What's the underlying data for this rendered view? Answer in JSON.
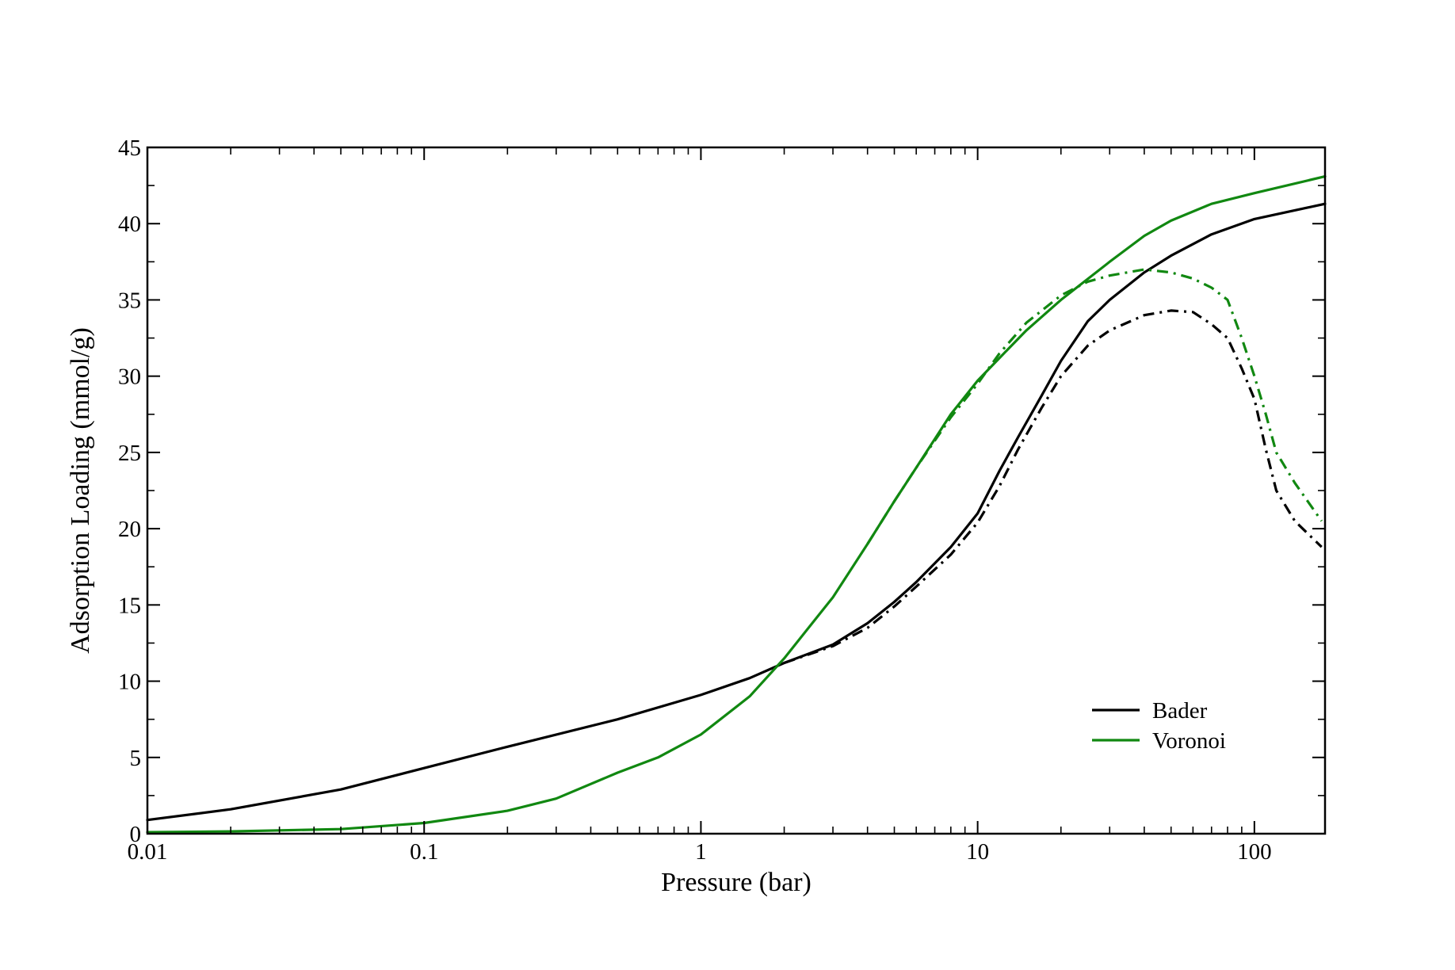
{
  "chart_data": {
    "type": "line",
    "xlabel": "Pressure (bar)",
    "ylabel": "Adsorption Loading (mmol/g)",
    "xscale": "log",
    "xlim": [
      0.01,
      180
    ],
    "ylim": [
      0,
      45
    ],
    "x_ticks": [
      {
        "value": 0.01,
        "label": "0.01"
      },
      {
        "value": 0.1,
        "label": "0.1"
      },
      {
        "value": 1,
        "label": "1"
      },
      {
        "value": 10,
        "label": "10"
      },
      {
        "value": 100,
        "label": "100"
      }
    ],
    "y_ticks": [
      {
        "value": 0,
        "label": "0"
      },
      {
        "value": 5,
        "label": "5"
      },
      {
        "value": 10,
        "label": "10"
      },
      {
        "value": 15,
        "label": "15"
      },
      {
        "value": 20,
        "label": "20"
      },
      {
        "value": 25,
        "label": "25"
      },
      {
        "value": 30,
        "label": "30"
      },
      {
        "value": 35,
        "label": "35"
      },
      {
        "value": 40,
        "label": "40"
      },
      {
        "value": 45,
        "label": "45"
      }
    ],
    "grid": false,
    "legend_position": "bottom-right",
    "legend": [
      {
        "label": "Bader",
        "color": "#000000"
      },
      {
        "label": "Voronoi",
        "color": "#118811"
      }
    ],
    "series": [
      {
        "name": "Bader",
        "color": "#000000",
        "dash": "solid",
        "points": [
          [
            0.01,
            0.9
          ],
          [
            0.02,
            1.6
          ],
          [
            0.05,
            2.9
          ],
          [
            0.1,
            4.3
          ],
          [
            0.2,
            5.7
          ],
          [
            0.5,
            7.5
          ],
          [
            1,
            9.1
          ],
          [
            1.5,
            10.2
          ],
          [
            2,
            11.2
          ],
          [
            3,
            12.4
          ],
          [
            4,
            13.8
          ],
          [
            5,
            15.2
          ],
          [
            6,
            16.5
          ],
          [
            8,
            18.8
          ],
          [
            10,
            21
          ],
          [
            12,
            23.8
          ],
          [
            14,
            26
          ],
          [
            17,
            28.7
          ],
          [
            20,
            31
          ],
          [
            25,
            33.6
          ],
          [
            30,
            35
          ],
          [
            40,
            36.8
          ],
          [
            50,
            37.9
          ],
          [
            70,
            39.3
          ],
          [
            100,
            40.3
          ],
          [
            180,
            41.3
          ]
        ]
      },
      {
        "name": "",
        "color": "#000000",
        "dash": "dash-dot",
        "points": [
          [
            2,
            11.2
          ],
          [
            3,
            12.3
          ],
          [
            4,
            13.5
          ],
          [
            5,
            14.9
          ],
          [
            6,
            16.2
          ],
          [
            8,
            18.3
          ],
          [
            10,
            20.4
          ],
          [
            12,
            22.8
          ],
          [
            14,
            25.2
          ],
          [
            17,
            27.9
          ],
          [
            20,
            30
          ],
          [
            25,
            32
          ],
          [
            30,
            33
          ],
          [
            40,
            34
          ],
          [
            50,
            34.3
          ],
          [
            60,
            34.2
          ],
          [
            70,
            33.4
          ],
          [
            80,
            32.5
          ],
          [
            90,
            30.5
          ],
          [
            100,
            28.5
          ],
          [
            110,
            25.2
          ],
          [
            120,
            22.5
          ],
          [
            140,
            20.5
          ],
          [
            175,
            18.8
          ]
        ]
      },
      {
        "name": "Voronoi",
        "color": "#118811",
        "dash": "solid",
        "points": [
          [
            0.01,
            0.1
          ],
          [
            0.02,
            0.15
          ],
          [
            0.05,
            0.3
          ],
          [
            0.1,
            0.7
          ],
          [
            0.2,
            1.5
          ],
          [
            0.3,
            2.3
          ],
          [
            0.5,
            4
          ],
          [
            0.7,
            5
          ],
          [
            1,
            6.5
          ],
          [
            1.5,
            9
          ],
          [
            2,
            11.5
          ],
          [
            3,
            15.5
          ],
          [
            4,
            19
          ],
          [
            5,
            21.8
          ],
          [
            6,
            24
          ],
          [
            8,
            27.5
          ],
          [
            10,
            29.7
          ],
          [
            12,
            31.2
          ],
          [
            15,
            33
          ],
          [
            20,
            35
          ],
          [
            30,
            37.5
          ],
          [
            40,
            39.2
          ],
          [
            50,
            40.2
          ],
          [
            70,
            41.3
          ],
          [
            100,
            42
          ],
          [
            180,
            43.1
          ]
        ]
      },
      {
        "name": "",
        "color": "#118811",
        "dash": "dash-dot",
        "points": [
          [
            4,
            19
          ],
          [
            5,
            21.8
          ],
          [
            6,
            24
          ],
          [
            8,
            27.3
          ],
          [
            10,
            29.5
          ],
          [
            12,
            31.5
          ],
          [
            15,
            33.5
          ],
          [
            20,
            35.3
          ],
          [
            25,
            36.2
          ],
          [
            30,
            36.6
          ],
          [
            40,
            37
          ],
          [
            50,
            36.8
          ],
          [
            60,
            36.4
          ],
          [
            70,
            35.8
          ],
          [
            80,
            35
          ],
          [
            90,
            32.5
          ],
          [
            100,
            30
          ],
          [
            110,
            27.5
          ],
          [
            120,
            25
          ],
          [
            140,
            23
          ],
          [
            175,
            20.5
          ]
        ]
      }
    ]
  }
}
